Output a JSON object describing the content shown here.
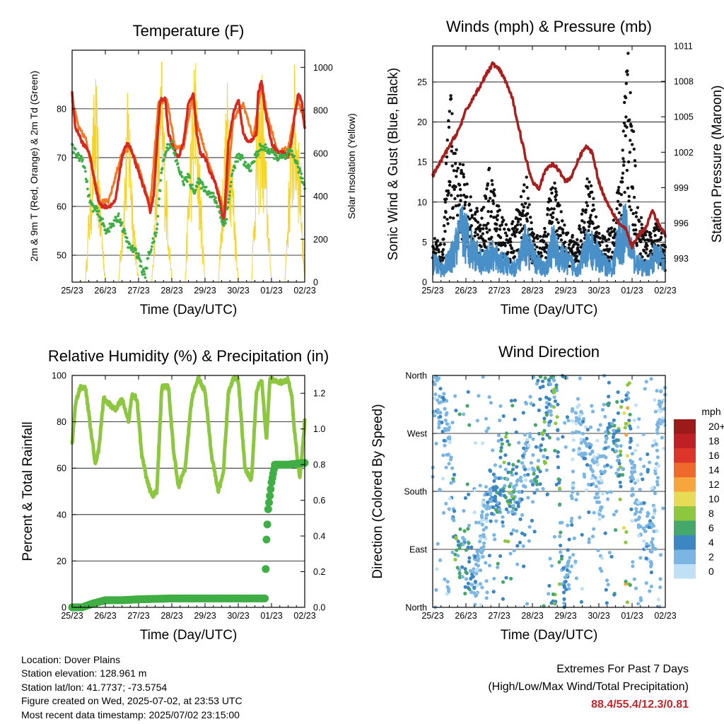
{
  "chart_data": [
    {
      "type": "line",
      "title": "Temperature (F)",
      "xlabel": "Time (Day/UTC)",
      "ylabel": "2m & 9m T (Red, Orange) & 2m Td (Green)",
      "y2label": "Solar Insolation (Yellow)",
      "x_ticks": [
        "25/23",
        "26/23",
        "27/23",
        "28/23",
        "29/23",
        "30/23",
        "01/23",
        "02/23"
      ],
      "ylim": [
        44.5,
        92
      ],
      "y_ticks": [
        50,
        60,
        70,
        80
      ],
      "y2lim": [
        0,
        1080
      ],
      "y2_ticks": [
        0,
        200,
        400,
        600,
        800,
        1000
      ],
      "grid": true,
      "series": [
        {
          "name": "2m T",
          "color": "#d42a20",
          "axis": "left",
          "x": [
            0,
            0.1,
            0.2,
            0.3,
            0.45,
            0.55,
            0.65,
            0.8,
            0.9,
            1.0,
            1.1,
            1.3,
            1.5,
            1.65,
            1.75,
            1.85,
            2.0,
            2.2,
            2.35,
            2.45,
            2.55,
            2.65,
            2.8,
            2.9,
            3.0,
            3.1,
            3.2,
            3.35,
            3.5,
            3.65,
            3.75,
            3.85,
            4.0,
            4.15,
            4.3,
            4.45,
            4.55,
            4.6,
            4.7,
            4.85,
            5.0,
            5.15,
            5.3,
            5.45,
            5.55,
            5.6,
            5.7,
            5.8,
            6.0,
            6.2,
            6.4,
            6.5,
            6.6,
            6.7,
            6.8,
            6.9,
            7.0
          ],
          "y": [
            83,
            76,
            75,
            73,
            72,
            70,
            66,
            61,
            60,
            60,
            60,
            61,
            70,
            73,
            72,
            70,
            67,
            63,
            59,
            62,
            72,
            82,
            82,
            75,
            73,
            71,
            70,
            73,
            81,
            83,
            75,
            71,
            70,
            67,
            65,
            61,
            56,
            60,
            73,
            79,
            82,
            75,
            73,
            74,
            75,
            83,
            86,
            80,
            73,
            71,
            71,
            70,
            73,
            79,
            83,
            82,
            76
          ]
        },
        {
          "name": "9m T",
          "color": "#f07a26",
          "axis": "left",
          "x": [
            0,
            0.2,
            0.4,
            0.6,
            0.85,
            1.1,
            1.5,
            1.75,
            2.0,
            2.35,
            2.6,
            2.85,
            3.1,
            3.35,
            3.6,
            3.85,
            4.15,
            4.45,
            4.6,
            4.85,
            5.15,
            5.45,
            5.7,
            5.9,
            6.2,
            6.5,
            6.8,
            7.0
          ],
          "y": [
            82,
            76,
            74,
            68,
            61,
            61,
            71,
            72,
            68,
            60,
            81,
            82,
            72,
            72,
            82,
            75,
            68,
            62,
            58,
            78,
            81,
            74,
            85,
            78,
            71,
            72,
            82,
            77
          ]
        },
        {
          "name": "2m Td",
          "color": "#3fae45",
          "axis": "left",
          "x": [
            0,
            0.1,
            0.2,
            0.3,
            0.4,
            0.5,
            0.6,
            0.75,
            0.9,
            1.0,
            1.2,
            1.4,
            1.55,
            1.7,
            1.85,
            2.0,
            2.1,
            2.2,
            2.3,
            2.45,
            2.55,
            2.6,
            2.7,
            2.85,
            3.0,
            3.1,
            3.2,
            3.35,
            3.5,
            3.65,
            3.8,
            3.95,
            4.1,
            4.25,
            4.4,
            4.55,
            4.65,
            4.8,
            4.95,
            5.1,
            5.25,
            5.4,
            5.5,
            5.65,
            5.8,
            6.0,
            6.2,
            6.4,
            6.55,
            6.7,
            6.85,
            7.0
          ],
          "y": [
            72,
            71,
            70,
            70,
            67,
            62,
            60,
            59,
            57,
            55,
            56,
            58,
            55,
            52,
            51,
            50,
            47,
            46,
            50,
            53,
            55,
            60,
            68,
            72,
            73,
            70,
            68,
            65,
            66,
            63,
            65,
            64,
            63,
            62,
            60,
            56,
            58,
            66,
            70,
            70,
            68,
            68,
            70,
            72,
            72,
            71,
            70,
            70,
            71,
            70,
            67,
            64
          ]
        },
        {
          "name": "Solar Insolation",
          "color": "#f5d327",
          "axis": "right",
          "x": [
            0,
            0.4,
            0.55,
            0.7,
            0.85,
            1.0,
            1.4,
            1.55,
            1.7,
            1.85,
            2.0,
            2.4,
            2.55,
            2.7,
            2.85,
            3.0,
            3.4,
            3.55,
            3.7,
            3.85,
            4.0,
            4.4,
            4.55,
            4.7,
            4.85,
            5.0,
            5.4,
            5.55,
            5.7,
            5.85,
            6.0,
            6.4,
            6.55,
            6.7,
            6.85,
            7.0
          ],
          "y": [
            0,
            0,
            500,
            950,
            400,
            0,
            0,
            450,
            900,
            350,
            0,
            0,
            600,
            1000,
            450,
            0,
            0,
            650,
            1050,
            500,
            0,
            0,
            550,
            950,
            480,
            0,
            0,
            700,
            1000,
            500,
            0,
            0,
            600,
            950,
            650,
            0
          ]
        }
      ]
    },
    {
      "type": "scatter",
      "title": "Winds (mph) & Pressure (mb)",
      "xlabel": "Time (Day/UTC)",
      "ylabel": "Sonic Wind & Gust (Blue, Black)",
      "y2label": "Station Pressure (Maroon)",
      "x_ticks": [
        "25/23",
        "26/23",
        "27/23",
        "28/23",
        "29/23",
        "30/23",
        "01/23",
        "02/23"
      ],
      "ylim": [
        0,
        29.5
      ],
      "y_ticks": [
        0,
        5,
        10,
        15,
        20,
        25
      ],
      "y2lim": [
        991,
        1011
      ],
      "y2_ticks": [
        993,
        996,
        999,
        1002,
        1005,
        1008,
        1011
      ],
      "grid": true,
      "series": [
        {
          "name": "Sonic Wind",
          "color": "#4a90c8",
          "axis": "left",
          "x": [
            0,
            0.3,
            0.6,
            0.9,
            1.2,
            1.5,
            1.8,
            2.1,
            2.4,
            2.6,
            2.8,
            3.1,
            3.4,
            3.6,
            3.8,
            4.1,
            4.4,
            4.6,
            4.8,
            5.1,
            5.4,
            5.6,
            5.8,
            6.1,
            6.4,
            6.7,
            7.0
          ],
          "y": [
            3,
            2,
            4,
            8,
            5,
            3,
            4,
            3,
            2,
            3,
            6,
            3,
            2,
            6,
            4,
            3,
            2,
            5,
            5,
            3,
            2,
            6,
            8,
            3,
            2,
            4,
            3
          ]
        },
        {
          "name": "Gust",
          "color": "#111111",
          "axis": "left",
          "x": [
            0,
            0.3,
            0.5,
            0.7,
            0.9,
            1.1,
            1.4,
            1.7,
            2.0,
            2.3,
            2.6,
            2.8,
            3.0,
            3.3,
            3.6,
            3.8,
            4.0,
            4.3,
            4.5,
            4.7,
            5.0,
            5.2,
            5.5,
            5.7,
            5.85,
            6.0,
            6.2,
            6.5,
            6.8,
            7.0
          ],
          "y": [
            6,
            4,
            23,
            16,
            14,
            10,
            8,
            13,
            9,
            6,
            9,
            13,
            6,
            5,
            12,
            10,
            6,
            5,
            8,
            13,
            6,
            5,
            9,
            15,
            27.5,
            20,
            8,
            6,
            7,
            4
          ]
        },
        {
          "name": "Station Pressure",
          "color": "#a6201f",
          "axis": "right",
          "x": [
            0,
            0.2,
            0.4,
            0.6,
            0.8,
            1.0,
            1.2,
            1.4,
            1.6,
            1.8,
            2.0,
            2.2,
            2.4,
            2.6,
            2.8,
            3.0,
            3.2,
            3.4,
            3.6,
            3.8,
            4.0,
            4.2,
            4.4,
            4.6,
            4.8,
            5.0,
            5.2,
            5.4,
            5.6,
            5.8,
            6.0,
            6.2,
            6.4,
            6.6,
            6.8,
            7.0
          ],
          "y": [
            1000,
            1001,
            1002,
            1003,
            1004,
            1005.5,
            1006.5,
            1007.5,
            1008.5,
            1009.5,
            1009,
            1008,
            1006.5,
            1004,
            1001.5,
            999.5,
            999,
            1000.5,
            1001,
            1000.5,
            999.5,
            1000,
            1001.5,
            1002.5,
            1002,
            999.5,
            998,
            997,
            996,
            995.5,
            994,
            995,
            995.5,
            997,
            996,
            995
          ]
        }
      ]
    },
    {
      "type": "line",
      "title": "Relative Humidity (%) & Precipitation (in)",
      "xlabel": "Time (Day/UTC)",
      "ylabel": "Percent & Total Rainfall",
      "x_ticks": [
        "25/23",
        "26/23",
        "27/23",
        "28/23",
        "29/23",
        "30/23",
        "01/23",
        "02/23"
      ],
      "ylim": [
        0,
        100
      ],
      "y_ticks": [
        0,
        20,
        40,
        60,
        80,
        100
      ],
      "y2lim": [
        0,
        1.3
      ],
      "y2_ticks": [
        0.0,
        0.2,
        0.4,
        0.6,
        0.8,
        1.0,
        1.2
      ],
      "grid": true,
      "series": [
        {
          "name": "Relative Humidity",
          "color": "#8dc63f",
          "axis": "left",
          "x": [
            0,
            0.1,
            0.25,
            0.4,
            0.55,
            0.7,
            0.8,
            0.95,
            1.1,
            1.3,
            1.5,
            1.7,
            1.8,
            1.95,
            2.1,
            2.25,
            2.4,
            2.55,
            2.7,
            2.9,
            3.05,
            3.2,
            3.4,
            3.6,
            3.8,
            4.0,
            4.2,
            4.4,
            4.55,
            4.7,
            4.85,
            5.0,
            5.2,
            5.4,
            5.55,
            5.7,
            5.85,
            5.95,
            6.1,
            6.3,
            6.5,
            6.6,
            6.7,
            6.85,
            7.0
          ],
          "y": [
            70,
            88,
            95,
            95,
            78,
            62,
            68,
            90,
            88,
            85,
            90,
            80,
            92,
            90,
            65,
            55,
            48,
            50,
            95,
            95,
            68,
            52,
            60,
            90,
            99,
            93,
            65,
            50,
            58,
            92,
            99,
            98,
            60,
            55,
            94,
            98,
            72,
            98,
            98,
            97,
            98,
            92,
            75,
            55,
            80
          ]
        },
        {
          "name": "Total Rainfall",
          "color": "#3fae45",
          "axis": "right",
          "x": [
            0,
            0.3,
            0.6,
            1.0,
            1.5,
            2.0,
            3.0,
            4.0,
            5.0,
            5.8,
            5.85,
            5.9,
            6.0,
            6.1,
            6.2,
            6.5,
            7.0
          ],
          "y": [
            0.0,
            0.0,
            0.02,
            0.04,
            0.04,
            0.045,
            0.05,
            0.05,
            0.05,
            0.05,
            0.38,
            0.55,
            0.7,
            0.8,
            0.8,
            0.8,
            0.81
          ]
        }
      ]
    },
    {
      "type": "scatter",
      "title": "Wind Direction",
      "xlabel": "Time (Day/UTC)",
      "ylabel": "Direction (Colored By Speed)",
      "x_ticks": [
        "25/23",
        "26/23",
        "27/23",
        "28/23",
        "29/23",
        "30/23",
        "01/23",
        "02/23"
      ],
      "y_ticks": [
        "North",
        "East",
        "South",
        "West",
        "North"
      ],
      "ylim": [
        0,
        360
      ],
      "grid": true,
      "legend": {
        "title": "mph",
        "labels": [
          "20+",
          "18",
          "16",
          "14",
          "12",
          "10",
          "8",
          "6",
          "4",
          "2",
          "0"
        ],
        "colors": [
          "#9b1b1b",
          "#bf2026",
          "#dc3529",
          "#f0692c",
          "#f7a63d",
          "#e8db55",
          "#8dc63f",
          "#45a86a",
          "#3c86c2",
          "#7bb6e2",
          "#bfe0f5"
        ],
        "placement": "right"
      },
      "series": [
        {
          "name": "direction",
          "x": [
            0.1,
            0.3,
            0.5,
            0.7,
            0.9,
            1.1,
            1.3,
            1.5,
            1.7,
            1.9,
            2.1,
            2.3,
            2.5,
            2.7,
            2.9,
            3.1,
            3.3,
            3.5,
            3.7,
            3.9,
            4.1,
            4.3,
            4.5,
            4.7,
            4.9,
            5.1,
            5.3,
            5.5,
            5.7,
            5.85,
            6.0,
            6.2,
            6.4,
            6.6,
            6.8
          ],
          "y": [
            330,
            300,
            260,
            90,
            80,
            60,
            40,
            120,
            180,
            170,
            160,
            190,
            180,
            200,
            240,
            210,
            250,
            320,
            350,
            20,
            40,
            300,
            260,
            240,
            200,
            170,
            320,
            250,
            220,
            350,
            200,
            150,
            120,
            90,
            300
          ],
          "speed": [
            3,
            4,
            2,
            8,
            6,
            5,
            3,
            2,
            4,
            5,
            6,
            8,
            5,
            4,
            3,
            6,
            8,
            5,
            8,
            6,
            4,
            2,
            3,
            4,
            2,
            3,
            5,
            6,
            8,
            12,
            3,
            2,
            4,
            3,
            2
          ]
        }
      ]
    }
  ],
  "info": {
    "location": "Location: Dover Plains",
    "elevation": "Station elevation: 128.961 m",
    "latlon": "Station lat/lon: 41.7737; -73.5754",
    "created": "Figure created on Wed, 2025-07-02, at 23:53 UTC",
    "latest": "Most recent data timestamp: 2025/07/02 23:15:00"
  },
  "extremes": {
    "title": "Extremes For Past 7 Days",
    "subtitle": "(High/Low/Max Wind/Total Precipitation)",
    "values": "88.4/55.4/12.3/0.81"
  }
}
